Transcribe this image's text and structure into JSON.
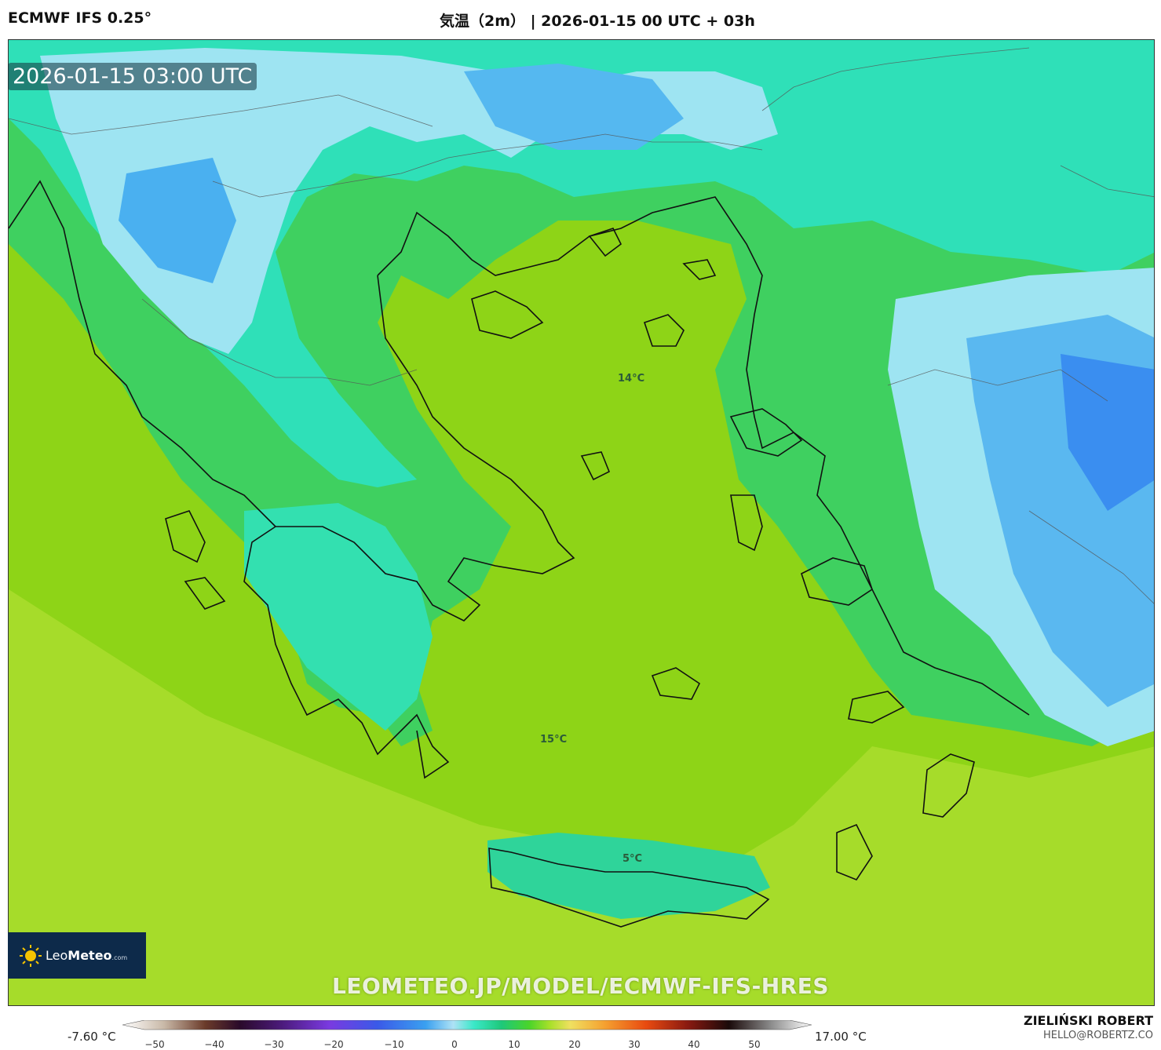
{
  "header": {
    "model": "ECMWF IFS 0.25°",
    "run": "気温（2m） | 2026-01-15 00 UTC + 03h"
  },
  "map": {
    "valid_time": "2026-01-15 03:00 UTC",
    "labels": [
      "14°C",
      "15°C",
      "5°C"
    ],
    "watermark": "LEOMETEO.JP/MODEL/ECMWF-IFS-HRES"
  },
  "logo": {
    "name_light": "Leo",
    "name_bold": "Meteo",
    "suffix": ".com"
  },
  "colorbar": {
    "min_label": "-7.60 °C",
    "max_label": "17.00 °C",
    "ticks": [
      "−50",
      "−40",
      "−30",
      "−20",
      "−10",
      "0",
      "10",
      "20",
      "30",
      "40",
      "50"
    ],
    "colors": [
      "#ffffff",
      "#c9b9a8",
      "#6b3b2a",
      "#2a0a2a",
      "#4b1a7a",
      "#7a3ae0",
      "#3a5ae8",
      "#3aa0f0",
      "#aee2f5",
      "#3ae8c8",
      "#1ec87a",
      "#4ad42a",
      "#a8e02a",
      "#f0e060",
      "#f5a030",
      "#e84a10",
      "#8a1a10",
      "#1a0a0a",
      "#8a8a8a",
      "#ffffff"
    ]
  },
  "author": {
    "name": "ZIELIŃSKI ROBERT",
    "email": "HELLO@ROBERTZ.CO"
  }
}
